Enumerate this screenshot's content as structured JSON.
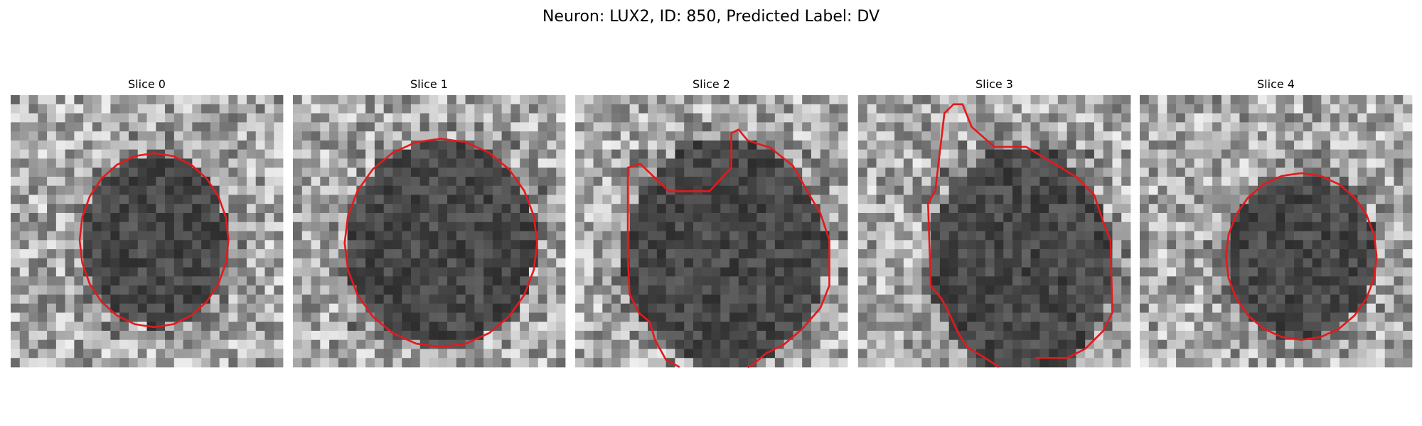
{
  "header": {
    "title": "Neuron: LUX2, ID: 850, Predicted Label: DV"
  },
  "panels": [
    {
      "title": "Slice 0"
    },
    {
      "title": "Slice 1"
    },
    {
      "title": "Slice 2"
    },
    {
      "title": "Slice 3"
    },
    {
      "title": "Slice 4"
    }
  ]
}
